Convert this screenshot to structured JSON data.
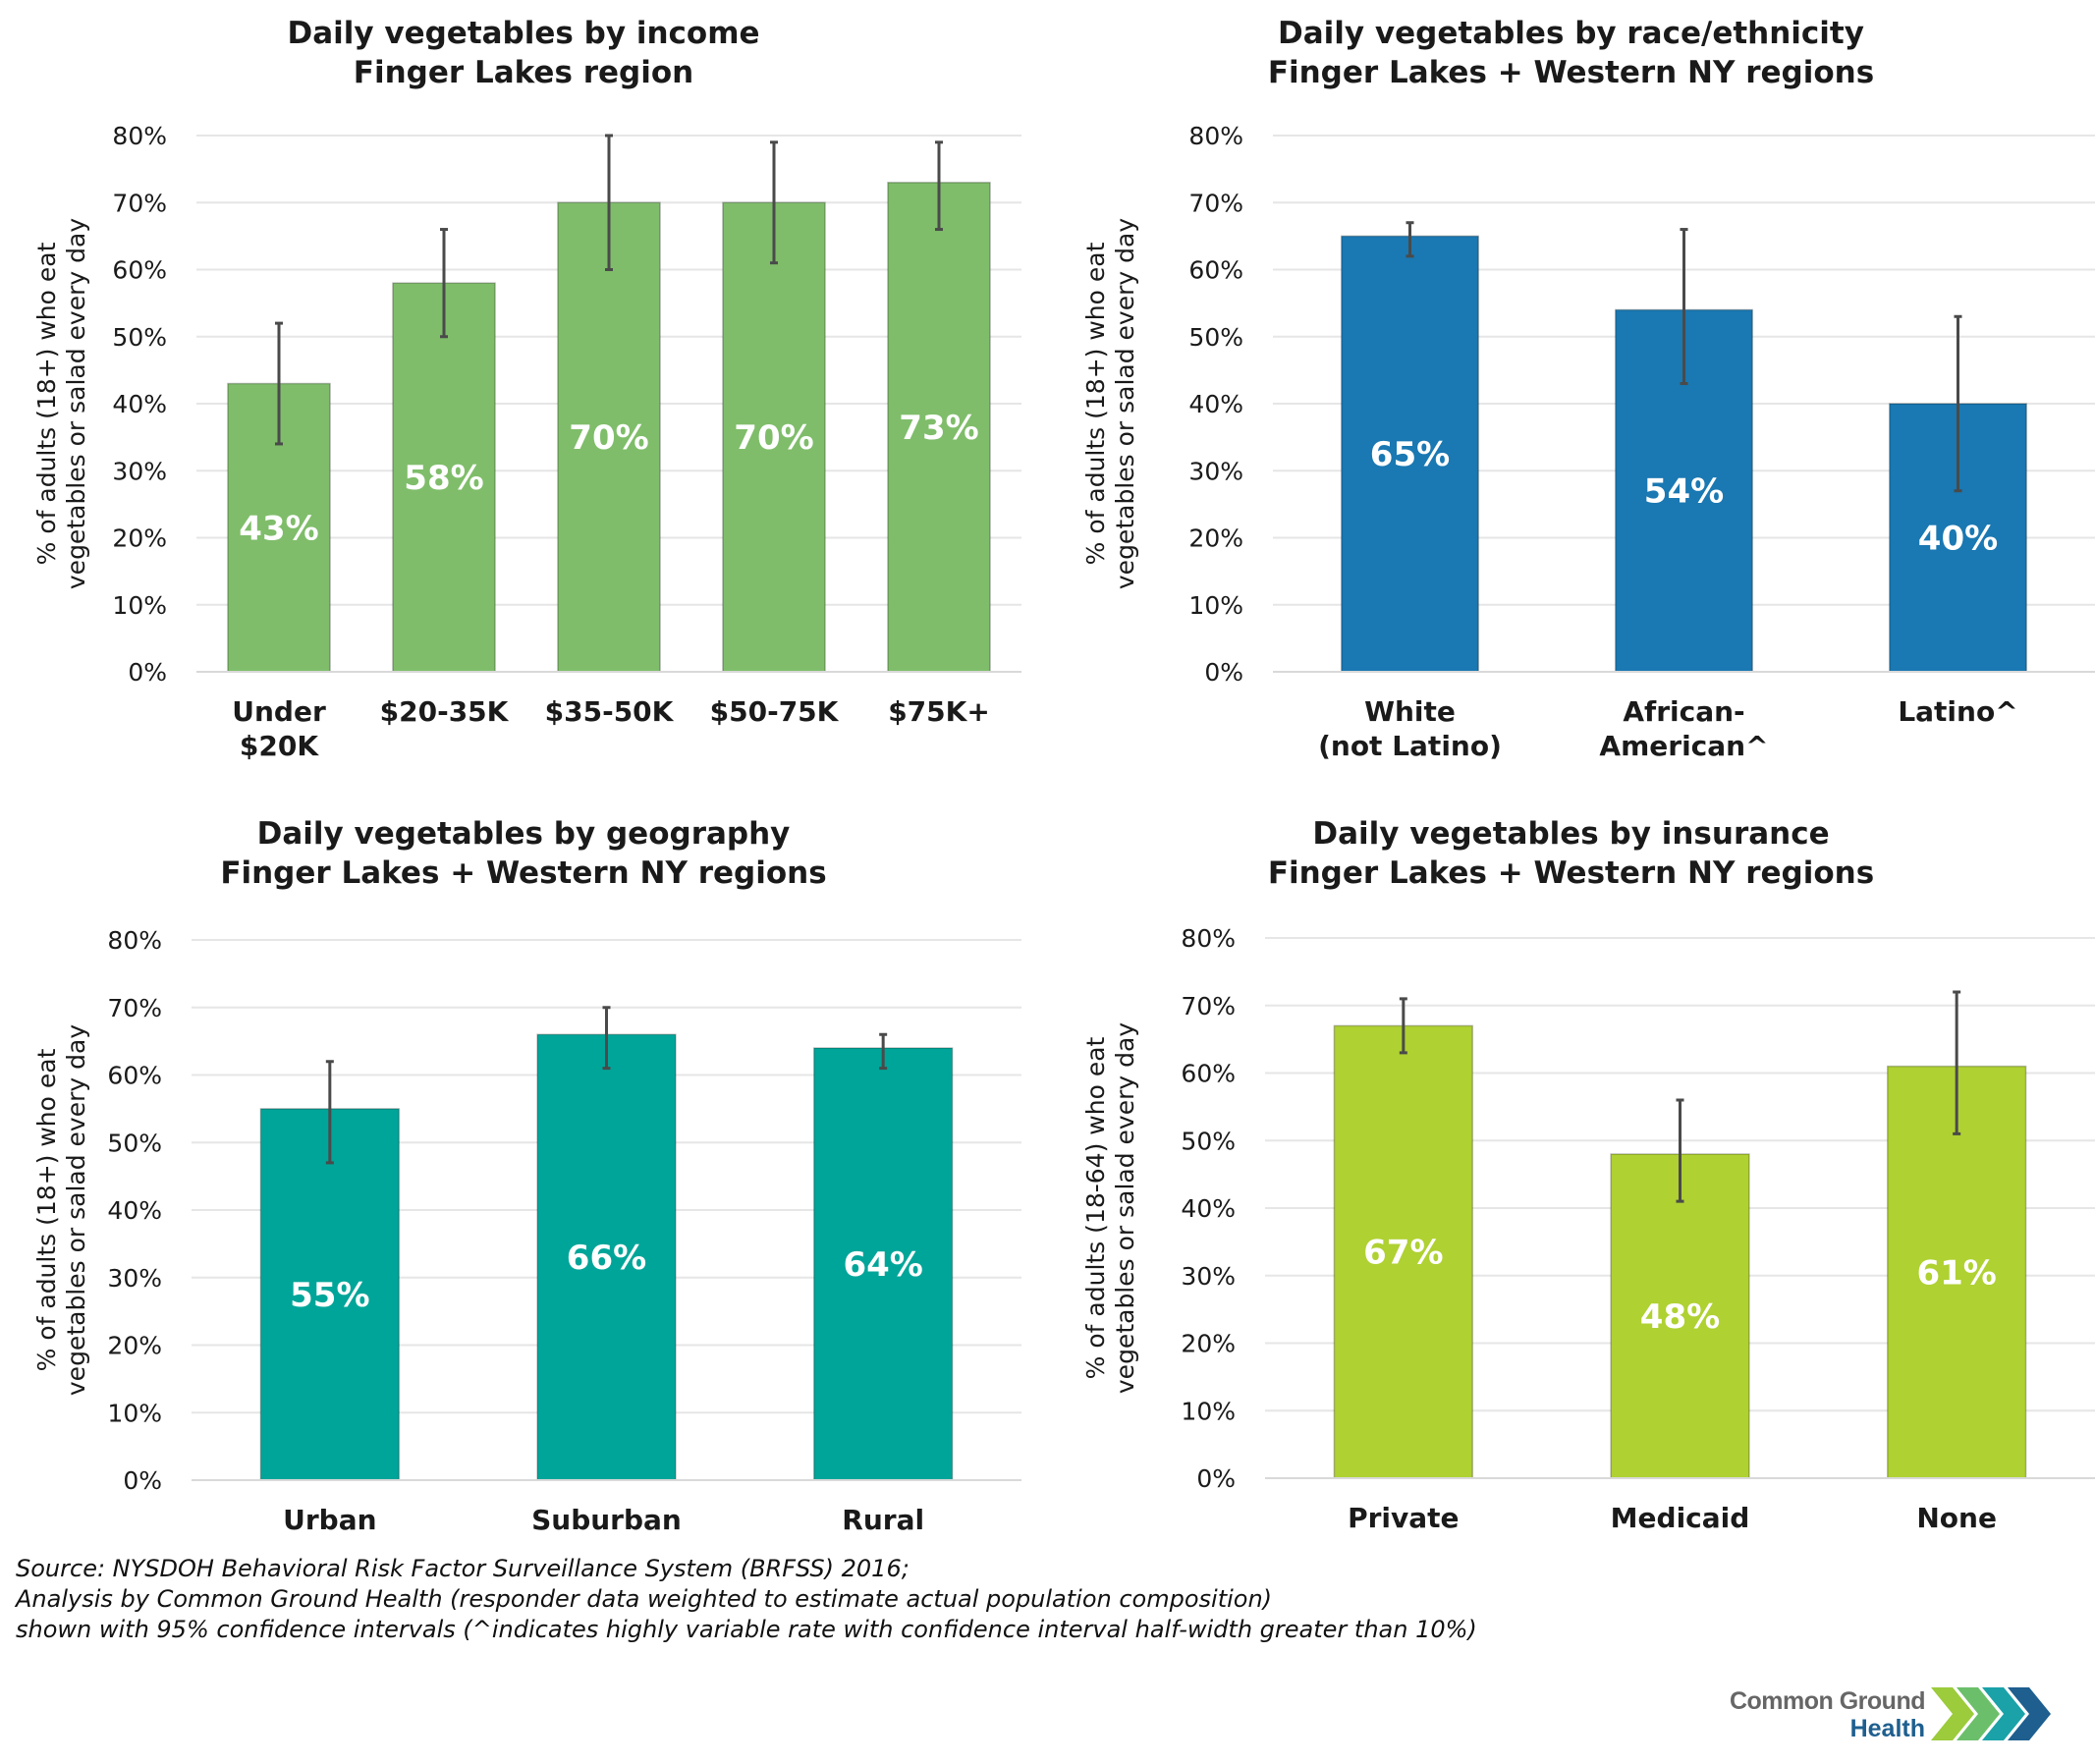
{
  "chart_data": [
    {
      "id": "income",
      "type": "bar",
      "title": "Daily vegetables by income",
      "subtitle": "Finger Lakes region",
      "ylabel_lines": [
        "% of adults (18+) who eat",
        "vegetables or salad every day"
      ],
      "xlabel": "",
      "ylim": [
        0,
        80
      ],
      "yticks": [
        0,
        10,
        20,
        30,
        40,
        50,
        60,
        70,
        80
      ],
      "ytick_labels": [
        "0%",
        "10%",
        "20%",
        "30%",
        "40%",
        "50%",
        "60%",
        "70%",
        "80%"
      ],
      "grid": true,
      "color": "#7fbd6a",
      "categories": [
        [
          "Under",
          "$20K"
        ],
        [
          "$20-35K"
        ],
        [
          "$35-50K"
        ],
        [
          "$50-75K"
        ],
        [
          "$75K+"
        ]
      ],
      "values": [
        43,
        58,
        70,
        70,
        73
      ],
      "data_labels": [
        "43%",
        "58%",
        "70%",
        "70%",
        "73%"
      ],
      "ci_low": [
        34,
        50,
        60,
        61,
        66
      ],
      "ci_high": [
        52,
        66,
        80,
        79,
        79
      ]
    },
    {
      "id": "race",
      "type": "bar",
      "title": "Daily vegetables by race/ethnicity",
      "subtitle": "Finger Lakes + Western NY regions",
      "ylabel_lines": [
        "% of adults (18+) who eat",
        "vegetables or salad every day"
      ],
      "xlabel": "",
      "ylim": [
        0,
        80
      ],
      "yticks": [
        0,
        10,
        20,
        30,
        40,
        50,
        60,
        70,
        80
      ],
      "ytick_labels": [
        "0%",
        "10%",
        "20%",
        "30%",
        "40%",
        "50%",
        "60%",
        "70%",
        "80%"
      ],
      "grid": true,
      "color": "#1a78b2",
      "categories": [
        [
          "White",
          "(not Latino)"
        ],
        [
          "African-",
          "American^"
        ],
        [
          "Latino^"
        ]
      ],
      "values": [
        65,
        54,
        40
      ],
      "data_labels": [
        "65%",
        "54%",
        "40%"
      ],
      "ci_low": [
        62,
        43,
        27
      ],
      "ci_high": [
        67,
        66,
        53
      ]
    },
    {
      "id": "geography",
      "type": "bar",
      "title": "Daily vegetables by geography",
      "subtitle": "Finger Lakes + Western NY regions",
      "ylabel_lines": [
        "% of adults (18+) who eat",
        "vegetables or salad every day"
      ],
      "xlabel": "",
      "ylim": [
        0,
        80
      ],
      "yticks": [
        0,
        10,
        20,
        30,
        40,
        50,
        60,
        70,
        80
      ],
      "ytick_labels": [
        "0%",
        "10%",
        "20%",
        "30%",
        "40%",
        "50%",
        "60%",
        "70%",
        "80%"
      ],
      "grid": true,
      "color": "#00a599",
      "categories": [
        [
          "Urban"
        ],
        [
          "Suburban"
        ],
        [
          "Rural"
        ]
      ],
      "values": [
        55,
        66,
        64
      ],
      "data_labels": [
        "55%",
        "66%",
        "64%"
      ],
      "ci_low": [
        47,
        61,
        61
      ],
      "ci_high": [
        62,
        70,
        66
      ]
    },
    {
      "id": "insurance",
      "type": "bar",
      "title": "Daily vegetables by insurance",
      "subtitle": "Finger Lakes + Western NY regions",
      "ylabel_lines": [
        "% of adults (18-64) who eat",
        "vegetables or salad every day"
      ],
      "xlabel": "",
      "ylim": [
        0,
        80
      ],
      "yticks": [
        0,
        10,
        20,
        30,
        40,
        50,
        60,
        70,
        80
      ],
      "ytick_labels": [
        "0%",
        "10%",
        "20%",
        "30%",
        "40%",
        "50%",
        "60%",
        "70%",
        "80%"
      ],
      "grid": true,
      "color": "#afd132",
      "categories": [
        [
          "Private"
        ],
        [
          "Medicaid"
        ],
        [
          "None"
        ]
      ],
      "values": [
        67,
        48,
        61
      ],
      "data_labels": [
        "67%",
        "48%",
        "61%"
      ],
      "ci_low": [
        63,
        41,
        51
      ],
      "ci_high": [
        71,
        56,
        72
      ]
    }
  ],
  "source_notes": [
    "Source: NYSDOH Behavioral Risk Factor Surveillance System (BRFSS) 2016;",
    "Analysis by Common Ground Health (responder data weighted to estimate actual population composition)",
    "shown with 95% confidence intervals (^indicates highly variable rate with confidence interval half-width greater than 10%)"
  ],
  "logo": {
    "line1": "Common Ground",
    "line2": "Health",
    "icon": "chevrons-logo-icon",
    "colors": [
      "#9ccb3b",
      "#6cbf6a",
      "#1aa2a8",
      "#1e5f8f"
    ]
  }
}
